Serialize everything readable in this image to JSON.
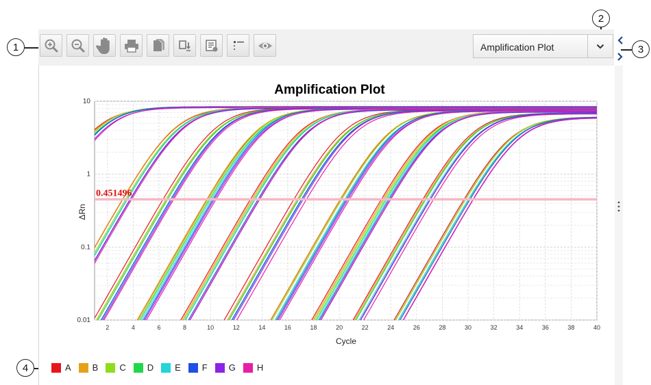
{
  "toolbar": {
    "buttons": [
      {
        "name": "zoom-in-button",
        "icon": "zoom-in-icon"
      },
      {
        "name": "zoom-out-button",
        "icon": "zoom-out-icon"
      },
      {
        "name": "pan-button",
        "icon": "hand-icon"
      },
      {
        "name": "print-button",
        "icon": "printer-icon"
      },
      {
        "name": "copy-button",
        "icon": "copy-icon"
      },
      {
        "name": "export-button",
        "icon": "export-icon"
      },
      {
        "name": "plot-properties-button",
        "icon": "properties-icon"
      },
      {
        "name": "legend-toggle-button",
        "icon": "legend-icon"
      },
      {
        "name": "show-hide-button",
        "icon": "eye-icon"
      }
    ],
    "plot_select": {
      "selected": "Amplification Plot",
      "icon": "chevron-down-icon"
    }
  },
  "side_panel": {
    "expand_icon": "chevron-left-icon",
    "collapse_icon": "chevron-right-icon",
    "splitter_icon": "vertical-dots-icon"
  },
  "callouts": [
    "1",
    "2",
    "3",
    "4"
  ],
  "chart_data": {
    "type": "line",
    "title": "Amplification Plot",
    "xlabel": "Cycle",
    "ylabel": "ΔRn",
    "xlim": [
      1,
      40
    ],
    "ylim": [
      0.01,
      10
    ],
    "y_scale": "log",
    "x_ticks": [
      "2",
      "4",
      "6",
      "8",
      "10",
      "12",
      "14",
      "16",
      "18",
      "20",
      "22",
      "24",
      "26",
      "28",
      "30",
      "32",
      "34",
      "36",
      "38",
      "40"
    ],
    "y_ticks": [
      "0.01",
      "0.1",
      "1",
      "10"
    ],
    "grid": true,
    "threshold": {
      "value": 0.451496,
      "label": "0.451496",
      "color": "#f5b8c4",
      "label_color": "#e01010"
    },
    "series_colors": {
      "A": "#e8141c",
      "B": "#e6a118",
      "C": "#8fdc1e",
      "D": "#1fd84a",
      "E": "#22d5d8",
      "F": "#1f4fe6",
      "G": "#8a25e6",
      "H": "#e61fa6"
    },
    "groups": [
      {
        "ct": 5.4,
        "plateau": 8.3
      },
      {
        "ct": 11.4,
        "plateau": 8.1
      },
      {
        "ct": 14.6,
        "plateau": 8.0
      },
      {
        "ct": 17.8,
        "plateau": 7.9
      },
      {
        "ct": 21.2,
        "plateau": 7.7
      },
      {
        "ct": 24.6,
        "plateau": 7.5
      },
      {
        "ct": 28.0,
        "plateau": 7.4
      },
      {
        "ct": 31.2,
        "plateau": 7.2
      },
      {
        "ct": 34.2,
        "plateau": 6.8
      },
      {
        "ct": 37.0,
        "plateau": 6.0
      }
    ]
  },
  "legend": [
    {
      "label": "A",
      "color": "#e8141c"
    },
    {
      "label": "B",
      "color": "#e6a118"
    },
    {
      "label": "C",
      "color": "#8fdc1e"
    },
    {
      "label": "D",
      "color": "#1fd84a"
    },
    {
      "label": "E",
      "color": "#22d5d8"
    },
    {
      "label": "F",
      "color": "#1f4fe6"
    },
    {
      "label": "G",
      "color": "#8a25e6"
    },
    {
      "label": "H",
      "color": "#e61fa6"
    }
  ]
}
